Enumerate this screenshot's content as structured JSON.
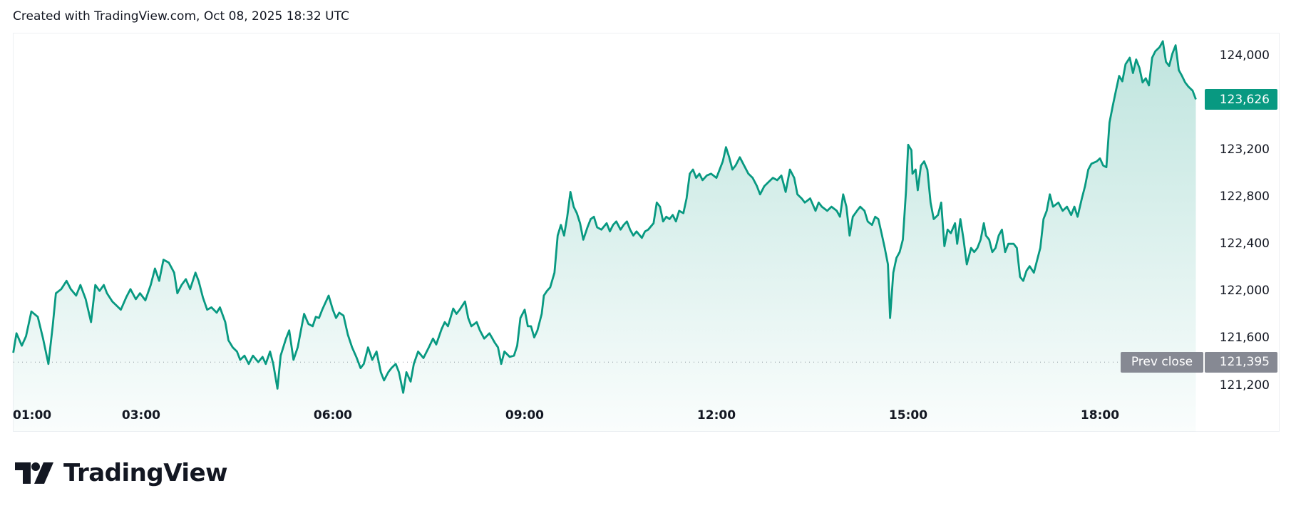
{
  "header": {
    "text": "Created with TradingView.com, Oct 08, 2025 18:32 UTC"
  },
  "logo": {
    "text": "TradingView"
  },
  "chart_data": {
    "type": "area",
    "line_color": "#089981",
    "grid": false,
    "y_axis_position": "right",
    "ylim": [
      121000,
      124300
    ],
    "y_ticks": [
      "124,000",
      "123,200",
      "122,800",
      "122,400",
      "122,000",
      "121,600",
      "121,200"
    ],
    "y_tick_values": [
      124000,
      123200,
      122800,
      122400,
      122000,
      121600,
      121200
    ],
    "x_ticks": [
      "01:00",
      "03:00",
      "06:00",
      "09:00",
      "12:00",
      "15:00",
      "18:00"
    ],
    "last_price": {
      "value": 123626,
      "label": "123,626",
      "color": "#089981"
    },
    "prev_close": {
      "value": 121395,
      "label": "Prev close",
      "value_label": "121,395",
      "color": "#868993"
    },
    "times": [
      "01:00",
      "01:03",
      "01:08",
      "01:12",
      "01:17",
      "01:23",
      "01:28",
      "01:33",
      "01:37",
      "01:40",
      "01:45",
      "01:50",
      "01:54",
      "01:59",
      "02:03",
      "02:08",
      "02:13",
      "02:17",
      "02:21",
      "02:25",
      "02:28",
      "02:33",
      "02:37",
      "02:41",
      "02:46",
      "02:50",
      "02:55",
      "02:59",
      "03:04",
      "03:09",
      "03:13",
      "03:17",
      "03:21",
      "03:26",
      "03:31",
      "03:34",
      "03:38",
      "03:42",
      "03:46",
      "03:51",
      "03:54",
      "03:58",
      "04:02",
      "04:06",
      "04:11",
      "04:14",
      "04:19",
      "04:22",
      "04:26",
      "04:30",
      "04:33",
      "04:37",
      "04:41",
      "04:45",
      "04:50",
      "04:54",
      "04:57",
      "05:01",
      "05:04",
      "05:08",
      "05:11",
      "05:16",
      "05:19",
      "05:23",
      "05:27",
      "05:30",
      "05:33",
      "05:37",
      "05:41",
      "05:44",
      "05:47",
      "05:50",
      "05:56",
      "06:00",
      "06:03",
      "06:06",
      "06:10",
      "06:14",
      "06:18",
      "06:22",
      "06:26",
      "06:29",
      "06:33",
      "06:37",
      "06:41",
      "06:45",
      "06:48",
      "06:52",
      "06:55",
      "06:59",
      "07:02",
      "07:06",
      "07:09",
      "07:13",
      "07:16",
      "07:20",
      "07:25",
      "07:30",
      "07:34",
      "07:37",
      "07:42",
      "07:45",
      "07:48",
      "07:53",
      "07:56",
      "07:59",
      "08:04",
      "08:07",
      "08:10",
      "08:15",
      "08:18",
      "08:22",
      "08:27",
      "08:32",
      "08:35",
      "08:38",
      "08:41",
      "08:46",
      "08:50",
      "08:53",
      "08:56",
      "09:00",
      "09:03",
      "09:06",
      "09:09",
      "09:12",
      "09:16",
      "09:18",
      "09:21",
      "09:24",
      "09:28",
      "09:31",
      "09:34",
      "09:37",
      "09:40",
      "09:43",
      "09:46",
      "09:49",
      "09:52",
      "09:55",
      "09:59",
      "10:02",
      "10:05",
      "10:08",
      "10:12",
      "10:17",
      "10:20",
      "10:23",
      "10:26",
      "10:30",
      "10:33",
      "10:36",
      "10:39",
      "10:42",
      "10:45",
      "10:50",
      "10:53",
      "10:56",
      "11:01",
      "11:04",
      "11:07",
      "11:10",
      "11:13",
      "11:16",
      "11:19",
      "11:22",
      "11:25",
      "11:29",
      "11:32",
      "11:35",
      "11:38",
      "11:41",
      "11:44",
      "11:47",
      "11:51",
      "11:55",
      "12:00",
      "12:03",
      "12:06",
      "12:09",
      "12:12",
      "12:15",
      "12:18",
      "12:22",
      "12:26",
      "12:30",
      "12:34",
      "12:38",
      "12:41",
      "12:45",
      "12:49",
      "12:53",
      "12:57",
      "13:01",
      "13:05",
      "13:09",
      "13:13",
      "13:16",
      "13:20",
      "13:23",
      "13:28",
      "13:33",
      "13:36",
      "13:39",
      "13:44",
      "13:48",
      "13:53",
      "13:56",
      "13:59",
      "14:02",
      "14:05",
      "14:08",
      "14:12",
      "14:15",
      "14:19",
      "14:22",
      "14:26",
      "14:29",
      "14:32",
      "14:35",
      "14:38",
      "14:41",
      "14:43",
      "14:46",
      "14:49",
      "14:52",
      "14:55",
      "14:58",
      "15:00",
      "15:03",
      "15:04",
      "15:07",
      "15:09",
      "15:12",
      "15:15",
      "15:18",
      "15:21",
      "15:24",
      "15:28",
      "15:31",
      "15:34",
      "15:37",
      "15:40",
      "15:44",
      "15:46",
      "15:49",
      "15:52",
      "15:55",
      "15:59",
      "16:02",
      "16:05",
      "16:08",
      "16:11",
      "16:13",
      "16:16",
      "16:19",
      "16:22",
      "16:25",
      "16:28",
      "16:31",
      "16:34",
      "16:39",
      "16:42",
      "16:45",
      "16:48",
      "16:51",
      "16:54",
      "16:58",
      "17:01",
      "17:04",
      "17:07",
      "17:10",
      "17:13",
      "17:16",
      "17:21",
      "17:25",
      "17:29",
      "17:33",
      "17:36",
      "17:39",
      "17:43",
      "17:46",
      "17:49",
      "17:52",
      "17:57",
      "18:00",
      "18:03",
      "18:06",
      "18:09",
      "18:12",
      "18:15",
      "18:18",
      "18:21",
      "18:24",
      "18:28",
      "18:31",
      "18:34",
      "18:37",
      "18:40",
      "18:43",
      "18:46",
      "18:49",
      "18:52",
      "18:56",
      "18:59",
      "19:02",
      "19:05",
      "19:08",
      "19:11",
      "19:14",
      "19:17",
      "19:20",
      "19:23",
      "19:27",
      "19:30"
    ],
    "prices": [
      121475,
      121640,
      121535,
      121615,
      121825,
      121780,
      121595,
      121380,
      121700,
      121980,
      122015,
      122085,
      122015,
      121960,
      122050,
      121930,
      121735,
      122050,
      122000,
      122050,
      121980,
      121910,
      121875,
      121840,
      121945,
      122015,
      121930,
      121980,
      121920,
      122050,
      122190,
      122085,
      122265,
      122240,
      122155,
      121980,
      122050,
      122100,
      122015,
      122155,
      122085,
      121945,
      121840,
      121860,
      121815,
      121860,
      121735,
      121580,
      121520,
      121485,
      121415,
      121450,
      121380,
      121450,
      121395,
      121440,
      121380,
      121485,
      121380,
      121170,
      121450,
      121595,
      121665,
      121415,
      121520,
      121665,
      121805,
      121720,
      121700,
      121780,
      121770,
      121840,
      121960,
      121840,
      121770,
      121815,
      121790,
      121630,
      121520,
      121440,
      121345,
      121380,
      121520,
      121415,
      121485,
      121310,
      121240,
      121310,
      121345,
      121380,
      121310,
      121135,
      121310,
      121230,
      121380,
      121485,
      121430,
      121520,
      121595,
      121545,
      121675,
      121735,
      121700,
      121850,
      121805,
      121840,
      121910,
      121770,
      121700,
      121735,
      121665,
      121595,
      121640,
      121560,
      121520,
      121380,
      121485,
      121440,
      121450,
      121535,
      121770,
      121840,
      121700,
      121700,
      121605,
      121665,
      121805,
      121960,
      122000,
      122030,
      122155,
      122470,
      122560,
      122470,
      122630,
      122840,
      122715,
      122660,
      122575,
      122435,
      122540,
      122610,
      122630,
      122540,
      122520,
      122575,
      122505,
      122560,
      122590,
      122520,
      122560,
      122590,
      122520,
      122470,
      122505,
      122450,
      122505,
      122520,
      122575,
      122750,
      122715,
      122590,
      122630,
      122610,
      122645,
      122590,
      122680,
      122660,
      122785,
      122995,
      123030,
      122960,
      122995,
      122940,
      122980,
      122995,
      122960,
      123030,
      123100,
      123220,
      123135,
      123030,
      123065,
      123135,
      123065,
      122995,
      122960,
      122890,
      122820,
      122890,
      122925,
      122960,
      122940,
      122980,
      122840,
      123030,
      122960,
      122820,
      122785,
      122750,
      122785,
      122680,
      122750,
      122715,
      122680,
      122715,
      122680,
      122630,
      122820,
      122715,
      122470,
      122630,
      122680,
      122715,
      122680,
      122590,
      122560,
      122630,
      122610,
      122490,
      122365,
      122225,
      121770,
      122155,
      122280,
      122330,
      122435,
      122855,
      123240,
      123195,
      122995,
      123030,
      122855,
      123065,
      123100,
      123030,
      122750,
      122610,
      122645,
      122750,
      122380,
      122520,
      122490,
      122575,
      122400,
      122610,
      122435,
      122225,
      122365,
      122330,
      122365,
      122435,
      122575,
      122470,
      122435,
      122330,
      122365,
      122470,
      122520,
      122330,
      122400,
      122400,
      122365,
      122120,
      122085,
      122170,
      122210,
      122155,
      122260,
      122365,
      122610,
      122680,
      122820,
      122715,
      122750,
      122680,
      122715,
      122645,
      122715,
      122630,
      122785,
      122890,
      123030,
      123080,
      123100,
      123125,
      123065,
      123050,
      123430,
      123570,
      123700,
      123825,
      123780,
      123925,
      123980,
      123850,
      123965,
      123895,
      123770,
      123805,
      123745,
      123980,
      124035,
      124070,
      124120,
      123945,
      123910,
      124015,
      124085,
      123875,
      123825,
      123770,
      123735,
      123700,
      123626
    ]
  }
}
